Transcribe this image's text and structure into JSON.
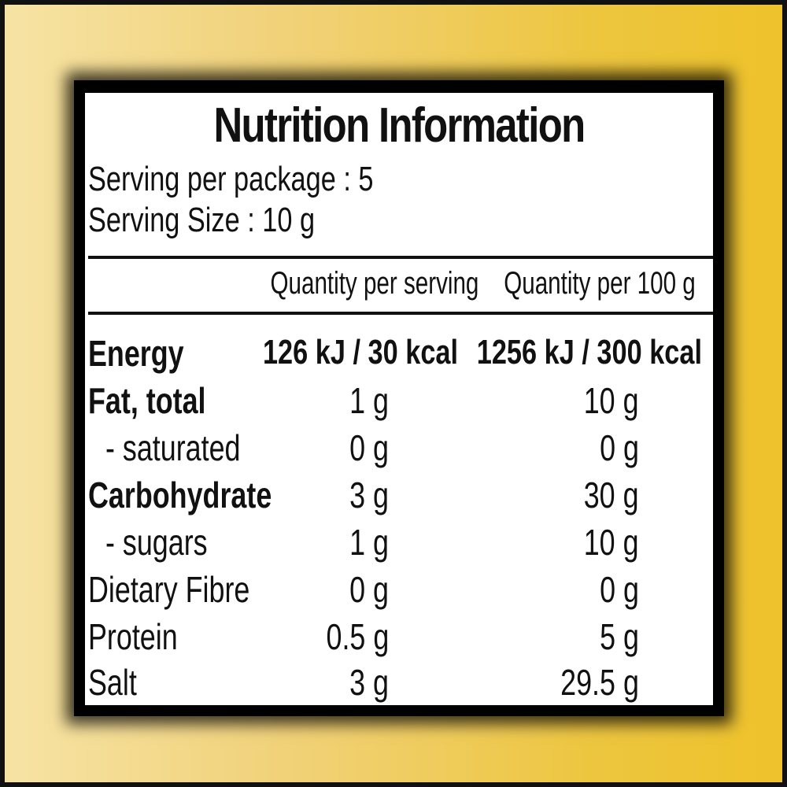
{
  "title": "Nutrition Information",
  "serving_per_package": "Serving per package : 5",
  "serving_size": "Serving Size : 10 g",
  "columns": {
    "per_serving": "Quantity per serving",
    "per_100g": "Quantity per 100 g"
  },
  "rows": [
    {
      "label": "Energy",
      "per_serving": "126 kJ / 30 kcal",
      "per_100g": "1256 kJ / 300 kcal"
    },
    {
      "label": "Fat, total",
      "per_serving": "1 g",
      "per_100g": "10 g"
    },
    {
      "label": "- saturated",
      "per_serving": "0 g",
      "per_100g": "0 g"
    },
    {
      "label": "Carbohydrate",
      "per_serving": "3 g",
      "per_100g": "30 g"
    },
    {
      "label": "- sugars",
      "per_serving": "1 g",
      "per_100g": "10 g"
    },
    {
      "label": "Dietary Fibre",
      "per_serving": "0 g",
      "per_100g": "0 g"
    },
    {
      "label": "Protein",
      "per_serving": "0.5 g",
      "per_100g": "5 g"
    },
    {
      "label": "Salt",
      "per_serving": "3 g",
      "per_100g": "29.5 g"
    }
  ]
}
